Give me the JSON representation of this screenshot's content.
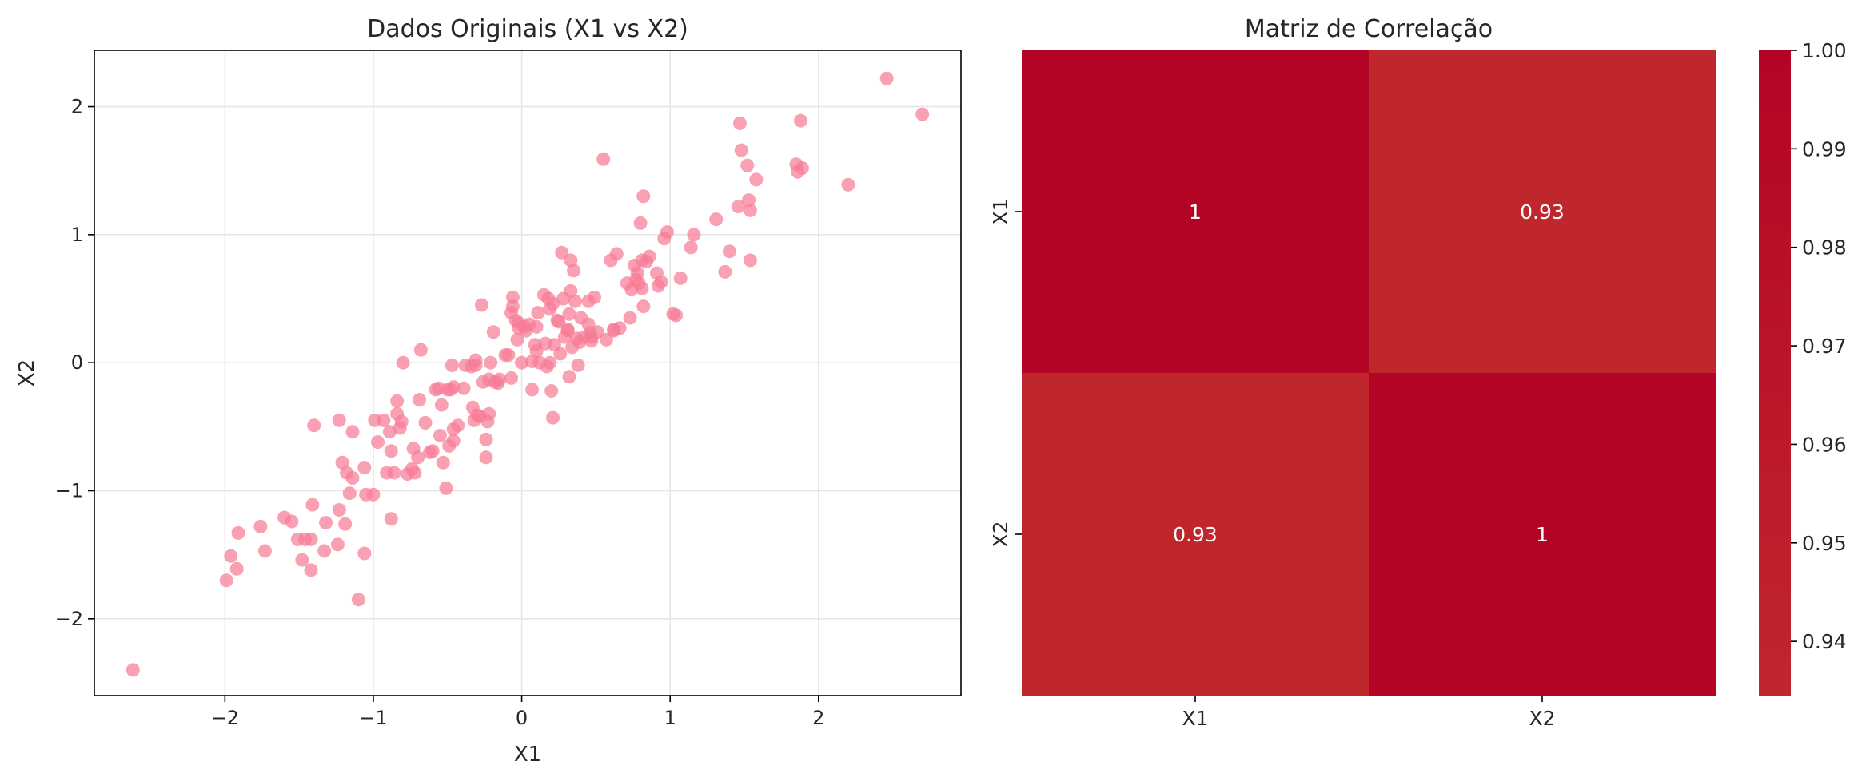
{
  "colors": {
    "point": "#f77b96",
    "grid": "#e6e6e6",
    "axis": "#000000",
    "text": "#262626",
    "annot": "#ffffff",
    "cmap_low": "#c0272d",
    "cmap_high": "#b40426"
  },
  "chart_data": [
    {
      "type": "scatter",
      "title": "Dados Originais (X1 vs X2)",
      "xlabel": "X1",
      "ylabel": "X2",
      "xlim": [
        -2.88,
        2.96
      ],
      "ylim": [
        -2.6,
        2.44
      ],
      "xticks": [
        -2,
        -1,
        0,
        1,
        2
      ],
      "yticks": [
        -2,
        -1,
        0,
        1,
        2
      ],
      "tick_labels_x": [
        "−2",
        "−1",
        "0",
        "1",
        "2"
      ],
      "tick_labels_y": [
        "−2",
        "−1",
        "0",
        "1",
        "2"
      ],
      "grid": true,
      "points": [
        [
          -2.62,
          -2.4
        ],
        [
          -1.99,
          -1.7
        ],
        [
          -1.96,
          -1.51
        ],
        [
          -1.92,
          -1.61
        ],
        [
          -1.91,
          -1.33
        ],
        [
          -1.76,
          -1.28
        ],
        [
          -1.73,
          -1.47
        ],
        [
          -1.6,
          -1.21
        ],
        [
          -1.55,
          -1.24
        ],
        [
          -1.51,
          -1.38
        ],
        [
          -1.48,
          -1.54
        ],
        [
          -1.46,
          -1.38
        ],
        [
          -1.42,
          -1.38
        ],
        [
          -1.42,
          -1.62
        ],
        [
          -1.41,
          -1.11
        ],
        [
          -1.4,
          -0.49
        ],
        [
          -1.33,
          -1.47
        ],
        [
          -1.32,
          -1.25
        ],
        [
          -1.24,
          -1.42
        ],
        [
          -1.23,
          -1.15
        ],
        [
          -1.23,
          -0.45
        ],
        [
          -1.21,
          -0.78
        ],
        [
          -1.19,
          -1.26
        ],
        [
          -1.18,
          -0.86
        ],
        [
          -1.16,
          -1.02
        ],
        [
          -1.14,
          -0.9
        ],
        [
          -1.14,
          -0.54
        ],
        [
          -1.1,
          -1.85
        ],
        [
          -1.06,
          -1.49
        ],
        [
          -1.06,
          -0.82
        ],
        [
          -1.05,
          -1.03
        ],
        [
          -1.0,
          -1.03
        ],
        [
          -0.99,
          -0.45
        ],
        [
          -0.97,
          -0.62
        ],
        [
          -0.93,
          -0.45
        ],
        [
          -0.91,
          -0.86
        ],
        [
          -0.89,
          -0.54
        ],
        [
          -0.88,
          -1.22
        ],
        [
          -0.88,
          -0.69
        ],
        [
          -0.86,
          -0.86
        ],
        [
          -0.84,
          -0.3
        ],
        [
          -0.84,
          -0.4
        ],
        [
          -0.82,
          -0.51
        ],
        [
          -0.81,
          -0.46
        ],
        [
          -0.8,
          0.0
        ],
        [
          -0.77,
          -0.87
        ],
        [
          -0.74,
          -0.83
        ],
        [
          -0.73,
          -0.67
        ],
        [
          -0.72,
          -0.86
        ],
        [
          -0.7,
          -0.74
        ],
        [
          -0.69,
          -0.29
        ],
        [
          -0.68,
          0.1
        ],
        [
          -0.65,
          -0.47
        ],
        [
          -0.62,
          -0.7
        ],
        [
          -0.6,
          -0.69
        ],
        [
          -0.58,
          -0.21
        ],
        [
          -0.56,
          -0.2
        ],
        [
          -0.55,
          -0.57
        ],
        [
          -0.54,
          -0.33
        ],
        [
          -0.53,
          -0.78
        ],
        [
          -0.51,
          -0.98
        ],
        [
          -0.5,
          -0.21
        ],
        [
          -0.49,
          -0.65
        ],
        [
          -0.48,
          -0.21
        ],
        [
          -0.47,
          -0.02
        ],
        [
          -0.46,
          -0.19
        ],
        [
          -0.46,
          -0.52
        ],
        [
          -0.46,
          -0.61
        ],
        [
          -0.43,
          -0.49
        ],
        [
          -0.39,
          -0.2
        ],
        [
          -0.38,
          -0.02
        ],
        [
          -0.34,
          -0.03
        ],
        [
          -0.33,
          -0.35
        ],
        [
          -0.32,
          -0.45
        ],
        [
          -0.31,
          -0.02
        ],
        [
          -0.31,
          0.02
        ],
        [
          -0.3,
          -0.41
        ],
        [
          -0.28,
          -0.42
        ],
        [
          -0.27,
          0.45
        ],
        [
          -0.26,
          -0.15
        ],
        [
          -0.24,
          -0.74
        ],
        [
          -0.24,
          -0.6
        ],
        [
          -0.23,
          -0.46
        ],
        [
          -0.22,
          -0.4
        ],
        [
          -0.22,
          -0.13
        ],
        [
          -0.21,
          0.0
        ],
        [
          -0.19,
          0.24
        ],
        [
          -0.18,
          -0.15
        ],
        [
          -0.16,
          -0.16
        ],
        [
          -0.15,
          -0.13
        ],
        [
          -0.11,
          0.06
        ],
        [
          -0.09,
          0.06
        ],
        [
          -0.07,
          -0.12
        ],
        [
          -0.07,
          0.39
        ],
        [
          -0.06,
          0.44
        ],
        [
          -0.06,
          0.51
        ],
        [
          -0.04,
          0.33
        ],
        [
          -0.03,
          0.18
        ],
        [
          -0.02,
          0.31
        ],
        [
          -0.02,
          0.27
        ],
        [
          0.0,
          0.0
        ],
        [
          0.02,
          0.28
        ],
        [
          0.03,
          0.25
        ],
        [
          0.05,
          0.3
        ],
        [
          0.07,
          0.01
        ],
        [
          0.07,
          -0.21
        ],
        [
          0.09,
          0.14
        ],
        [
          0.1,
          0.28
        ],
        [
          0.1,
          0.09
        ],
        [
          0.11,
          0.39
        ],
        [
          0.12,
          0.0
        ],
        [
          0.15,
          0.53
        ],
        [
          0.16,
          0.15
        ],
        [
          0.17,
          -0.03
        ],
        [
          0.18,
          0.5
        ],
        [
          0.19,
          0.42
        ],
        [
          0.19,
          0.0
        ],
        [
          0.2,
          -0.22
        ],
        [
          0.21,
          -0.43
        ],
        [
          0.21,
          0.46
        ],
        [
          0.22,
          0.14
        ],
        [
          0.24,
          0.33
        ],
        [
          0.25,
          0.32
        ],
        [
          0.26,
          0.07
        ],
        [
          0.27,
          0.86
        ],
        [
          0.28,
          0.5
        ],
        [
          0.29,
          0.2
        ],
        [
          0.31,
          0.26
        ],
        [
          0.31,
          0.25
        ],
        [
          0.32,
          -0.11
        ],
        [
          0.32,
          0.38
        ],
        [
          0.33,
          0.8
        ],
        [
          0.33,
          0.56
        ],
        [
          0.34,
          0.12
        ],
        [
          0.35,
          0.72
        ],
        [
          0.36,
          0.48
        ],
        [
          0.37,
          0.19
        ],
        [
          0.38,
          -0.02
        ],
        [
          0.39,
          0.16
        ],
        [
          0.4,
          0.35
        ],
        [
          0.42,
          0.2
        ],
        [
          0.45,
          0.3
        ],
        [
          0.45,
          0.48
        ],
        [
          0.46,
          0.23
        ],
        [
          0.47,
          0.2
        ],
        [
          0.47,
          0.17
        ],
        [
          0.49,
          0.51
        ],
        [
          0.51,
          0.24
        ],
        [
          0.55,
          1.59
        ],
        [
          0.57,
          0.18
        ],
        [
          0.6,
          0.8
        ],
        [
          0.62,
          0.26
        ],
        [
          0.62,
          0.25
        ],
        [
          0.64,
          0.85
        ],
        [
          0.66,
          0.27
        ],
        [
          0.71,
          0.62
        ],
        [
          0.73,
          0.35
        ],
        [
          0.74,
          0.57
        ],
        [
          0.76,
          0.76
        ],
        [
          0.77,
          0.65
        ],
        [
          0.78,
          0.7
        ],
        [
          0.79,
          0.62
        ],
        [
          0.8,
          1.09
        ],
        [
          0.81,
          0.8
        ],
        [
          0.81,
          0.58
        ],
        [
          0.82,
          1.3
        ],
        [
          0.82,
          0.44
        ],
        [
          0.84,
          0.79
        ],
        [
          0.86,
          0.83
        ],
        [
          0.91,
          0.7
        ],
        [
          0.92,
          0.6
        ],
        [
          0.94,
          0.63
        ],
        [
          0.96,
          0.97
        ],
        [
          0.98,
          1.02
        ],
        [
          1.02,
          0.38
        ],
        [
          1.04,
          0.37
        ],
        [
          1.07,
          0.66
        ],
        [
          1.14,
          0.9
        ],
        [
          1.16,
          1.0
        ],
        [
          1.31,
          1.12
        ],
        [
          1.37,
          0.71
        ],
        [
          1.4,
          0.87
        ],
        [
          1.46,
          1.22
        ],
        [
          1.47,
          1.87
        ],
        [
          1.48,
          1.66
        ],
        [
          1.52,
          1.54
        ],
        [
          1.53,
          1.27
        ],
        [
          1.54,
          1.19
        ],
        [
          1.54,
          0.8
        ],
        [
          1.58,
          1.43
        ],
        [
          1.85,
          1.55
        ],
        [
          1.86,
          1.49
        ],
        [
          1.88,
          1.89
        ],
        [
          1.89,
          1.52
        ],
        [
          2.2,
          1.39
        ],
        [
          2.46,
          2.22
        ],
        [
          2.7,
          1.94
        ]
      ]
    },
    {
      "type": "heatmap",
      "title": "Matriz de Correlação",
      "row_labels": [
        "X1",
        "X2"
      ],
      "col_labels": [
        "X1",
        "X2"
      ],
      "values": [
        [
          1.0,
          0.93
        ],
        [
          0.93,
          1.0
        ]
      ],
      "annotations": [
        [
          "1",
          "0.93"
        ],
        [
          "0.93",
          "1"
        ]
      ],
      "colorbar": {
        "range": [
          0.9345,
          1.0
        ],
        "ticks": [
          0.94,
          0.95,
          0.96,
          0.97,
          0.98,
          0.99,
          1.0
        ],
        "tick_labels": [
          "0.94",
          "0.95",
          "0.96",
          "0.97",
          "0.98",
          "0.99",
          "1.00"
        ]
      }
    }
  ]
}
